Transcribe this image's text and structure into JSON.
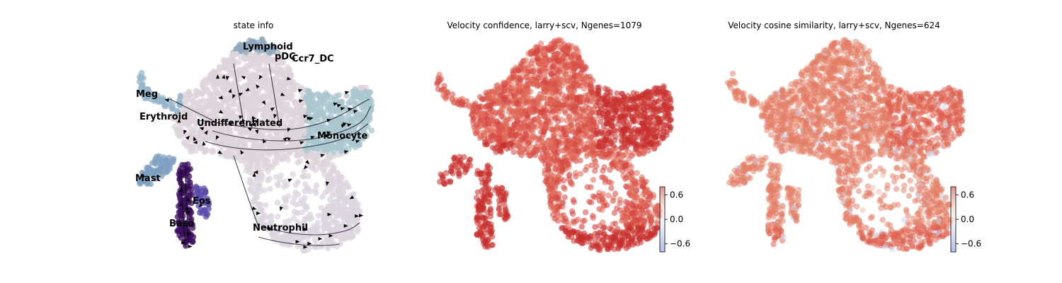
{
  "chart_data": [
    {
      "type": "scatter",
      "subtype": "umap-embedding-with-velocity-streamlines",
      "title": "state info",
      "axes_visible": false,
      "grid": false,
      "legend": "on-data",
      "categories": [
        {
          "name": "Lymphoid",
          "color": "#8fa8bf"
        },
        {
          "name": "pDC",
          "color": "#5b3a9a"
        },
        {
          "name": "Ccr7_DC",
          "color": "#4a2a8a"
        },
        {
          "name": "Meg",
          "color": "#95b4c9"
        },
        {
          "name": "Erythroid",
          "color": "#6a5fb0"
        },
        {
          "name": "Undifferentiated",
          "color": "#ddd4db"
        },
        {
          "name": "Monocyte",
          "color": "#a9c6cf"
        },
        {
          "name": "Mast",
          "color": "#7d9fc0"
        },
        {
          "name": "Eos",
          "color": "#5a4aa8"
        },
        {
          "name": "Baso",
          "color": "#3b0f5e"
        },
        {
          "name": "Neutrophil",
          "color": "#dcd6df"
        }
      ],
      "streamlines": "black",
      "arrow_color": "#000000"
    },
    {
      "type": "scatter",
      "subtype": "umap-embedding-continuous",
      "title": "Velocity confidence, larry+scv, Ngenes=1079",
      "axes_visible": false,
      "grid": false,
      "colormap": "coolwarm",
      "colorbar": {
        "ticks": [
          "0.6",
          "0.0",
          "−0.6"
        ],
        "vmin": -0.8,
        "vmax": 0.8
      },
      "dominant_color": "#d6473f",
      "legend": "colorbar-bottom-right"
    },
    {
      "type": "scatter",
      "subtype": "umap-embedding-continuous",
      "title": "Velocity cosine similarity, larry+scv, Ngenes=624",
      "axes_visible": false,
      "grid": false,
      "colormap": "coolwarm",
      "colorbar": {
        "ticks": [
          "0.6",
          "0.0",
          "−0.6"
        ],
        "vmin": -0.8,
        "vmax": 0.8
      },
      "dominant_color": "#e16d55",
      "legend": "colorbar-bottom-right"
    }
  ]
}
